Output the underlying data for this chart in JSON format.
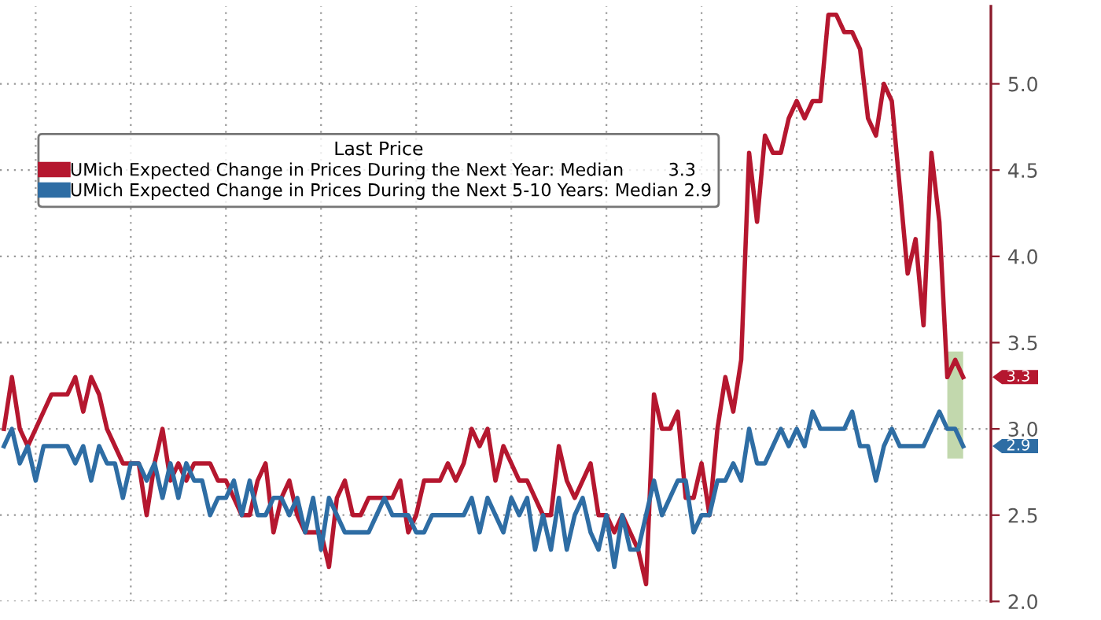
{
  "chart_data": {
    "type": "line",
    "legend_title": "Last Price",
    "categories": [
      null,
      null,
      null,
      null,
      null,
      null,
      null,
      null,
      null,
      null,
      null,
      null,
      null,
      null,
      null,
      null,
      null,
      null,
      null,
      null,
      null,
      null,
      null,
      null,
      null,
      null,
      null,
      null,
      null,
      null,
      null,
      null,
      null,
      null,
      null,
      null,
      null,
      null,
      null,
      null,
      null,
      null,
      null,
      null,
      null,
      null,
      null,
      null,
      null,
      null,
      null,
      null,
      null,
      null,
      null,
      null,
      null,
      null,
      null,
      null,
      null,
      null,
      null,
      null,
      null,
      null,
      null,
      null,
      null,
      null,
      null,
      null,
      null,
      null,
      null,
      null,
      null,
      null,
      null,
      null,
      null,
      null,
      null,
      null,
      null,
      null,
      null,
      null,
      null,
      null,
      null,
      null,
      null,
      null,
      null,
      null,
      null,
      null,
      null,
      null,
      null,
      null,
      null,
      null,
      null,
      null,
      null,
      null,
      null,
      null,
      null,
      null,
      null,
      null,
      null,
      null,
      null,
      null,
      null,
      null,
      null,
      null
    ],
    "series": [
      {
        "name": "UMich Expected Change in Prices During the Next Year: Median        3.3",
        "color": "#b5172f",
        "values": [
          3.0,
          3.3,
          3.0,
          2.9,
          3.0,
          3.1,
          3.2,
          3.2,
          3.2,
          3.3,
          3.1,
          3.3,
          3.2,
          3.0,
          2.9,
          2.8,
          2.8,
          2.8,
          2.5,
          2.8,
          3.0,
          2.7,
          2.8,
          2.7,
          2.8,
          2.8,
          2.8,
          2.7,
          2.7,
          2.6,
          2.5,
          2.5,
          2.7,
          2.8,
          2.4,
          2.6,
          2.7,
          2.5,
          2.4,
          2.4,
          2.4,
          2.2,
          2.6,
          2.7,
          2.5,
          2.5,
          2.6,
          2.6,
          2.6,
          2.6,
          2.7,
          2.4,
          2.5,
          2.7,
          2.7,
          2.7,
          2.8,
          2.7,
          2.8,
          3.0,
          2.9,
          3.0,
          2.7,
          2.9,
          2.8,
          2.7,
          2.7,
          2.6,
          2.5,
          2.5,
          2.9,
          2.7,
          2.6,
          2.7,
          2.8,
          2.5,
          2.5,
          2.4,
          2.5,
          2.4,
          2.3,
          2.1,
          3.2,
          3.0,
          3.0,
          3.1,
          2.6,
          2.6,
          2.8,
          2.5,
          3.0,
          3.3,
          3.1,
          3.4,
          4.6,
          4.2,
          4.7,
          4.6,
          4.6,
          4.8,
          4.9,
          4.8,
          4.9,
          4.9,
          5.4,
          5.4,
          5.3,
          5.3,
          5.2,
          4.8,
          4.7,
          5.0,
          4.9,
          4.4,
          3.9,
          4.1,
          3.6,
          4.6,
          4.2,
          3.3,
          3.4,
          3.3
        ]
      },
      {
        "name": "UMich Expected Change in Prices During the Next 5-10 Years: Median 2.9",
        "color": "#2e6da4",
        "values": [
          2.9,
          3.0,
          2.8,
          2.9,
          2.7,
          2.9,
          2.9,
          2.9,
          2.9,
          2.8,
          2.9,
          2.7,
          2.9,
          2.8,
          2.8,
          2.6,
          2.8,
          2.8,
          2.7,
          2.8,
          2.6,
          2.8,
          2.6,
          2.8,
          2.7,
          2.7,
          2.5,
          2.6,
          2.6,
          2.7,
          2.5,
          2.7,
          2.5,
          2.5,
          2.6,
          2.6,
          2.5,
          2.6,
          2.4,
          2.6,
          2.3,
          2.6,
          2.5,
          2.4,
          2.4,
          2.4,
          2.4,
          2.5,
          2.6,
          2.5,
          2.5,
          2.5,
          2.4,
          2.4,
          2.5,
          2.5,
          2.5,
          2.5,
          2.5,
          2.6,
          2.4,
          2.6,
          2.5,
          2.4,
          2.6,
          2.5,
          2.6,
          2.3,
          2.5,
          2.3,
          2.6,
          2.3,
          2.5,
          2.6,
          2.4,
          2.3,
          2.5,
          2.2,
          2.5,
          2.3,
          2.3,
          2.5,
          2.7,
          2.5,
          2.6,
          2.7,
          2.7,
          2.4,
          2.5,
          2.5,
          2.7,
          2.7,
          2.8,
          2.7,
          3.0,
          2.8,
          2.8,
          2.9,
          3.0,
          2.9,
          3.0,
          2.9,
          3.1,
          3.0,
          3.0,
          3.0,
          3.0,
          3.1,
          2.9,
          2.9,
          2.7,
          2.9,
          3.0,
          2.9,
          2.9,
          2.9,
          2.9,
          3.0,
          3.1,
          3.0,
          3.0,
          2.9
        ]
      }
    ],
    "annotations": [
      "3.3",
      "2.9"
    ],
    "ylim": [
      2.0,
      5.45
    ],
    "yticks": [
      {
        "value": 2.0,
        "label": "2.0"
      },
      {
        "value": 2.5,
        "label": "2.5"
      },
      {
        "value": 3.0,
        "label": "3.0"
      },
      {
        "value": 3.5,
        "label": "3.5"
      },
      {
        "value": 4.0,
        "label": "4.0"
      },
      {
        "value": 4.5,
        "label": "4.5"
      },
      {
        "value": 5.0,
        "label": "5.0"
      }
    ],
    "grid": true,
    "legend": "top left",
    "tick_labels": "y",
    "line_style": "solid",
    "marker": "none"
  }
}
